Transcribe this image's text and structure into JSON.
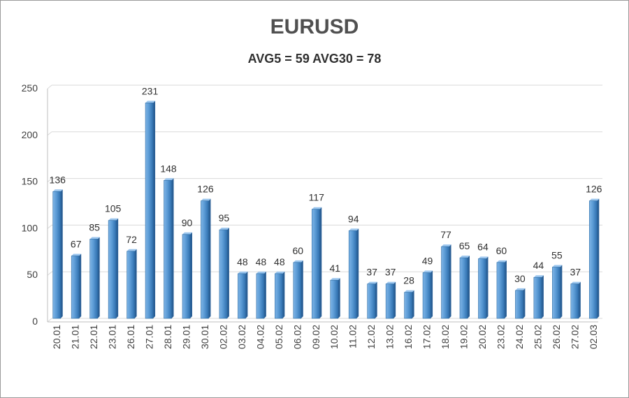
{
  "chart_data": {
    "type": "bar",
    "title": "EURUSD",
    "subtitle": "AVG5 = 59 AVG30 = 78",
    "xlabel": "",
    "ylabel": "",
    "ylim": [
      0,
      250
    ],
    "yticks": [
      0,
      50,
      100,
      150,
      200,
      250
    ],
    "grid": true,
    "legend": "none",
    "bar_color": "#5b9bd5",
    "bar_edge_color": "#2e6da4",
    "categories": [
      "20.01",
      "21.01",
      "22.01",
      "23.01",
      "26.01",
      "27.01",
      "28.01",
      "29.01",
      "30.01",
      "02.02",
      "03.02",
      "04.02",
      "05.02",
      "06.02",
      "09.02",
      "10.02",
      "11.02",
      "12.02",
      "13.02",
      "16.02",
      "17.02",
      "18.02",
      "19.02",
      "20.02",
      "23.02",
      "24.02",
      "25.02",
      "26.02",
      "27.02",
      "02.03"
    ],
    "values": [
      136,
      67,
      85,
      105,
      72,
      231,
      148,
      90,
      126,
      95,
      48,
      48,
      48,
      60,
      117,
      41,
      94,
      37,
      37,
      28,
      49,
      77,
      65,
      64,
      60,
      30,
      44,
      55,
      37,
      126
    ]
  }
}
